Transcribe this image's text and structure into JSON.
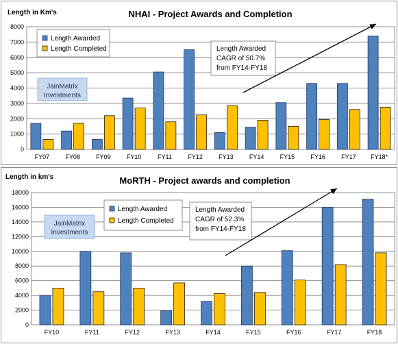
{
  "colors": {
    "awarded": "#4f81bd",
    "completed": "#ffc000",
    "awarded_border": "#1f3864",
    "completed_border": "#1f1f1f",
    "watermark_fill": "#c6d9f1",
    "grid": "#8c8c8c"
  },
  "chart_data": [
    {
      "type": "bar",
      "title": "NHAI - Project  Awards and Completion",
      "ylabel": "Length in Km's",
      "xlabel": "",
      "categories": [
        "FY07",
        "FY08",
        "FY09",
        "FY10",
        "FY11",
        "FY12",
        "FY13",
        "FY14",
        "FY15",
        "FY16",
        "FY17",
        "FY18*"
      ],
      "series": [
        {
          "name": "Length Awarded",
          "values": [
            1700,
            1200,
            650,
            3350,
            5050,
            6500,
            1100,
            1450,
            3050,
            4300,
            4300,
            7400
          ]
        },
        {
          "name": "Length Completed",
          "values": [
            650,
            1700,
            2200,
            2700,
            1800,
            2250,
            2850,
            1900,
            1500,
            1950,
            2600,
            2750
          ]
        }
      ],
      "ylim": [
        0,
        8000
      ],
      "yticks": [
        "0",
        "1000",
        "2000",
        "3000",
        "4000",
        "5000",
        "6000",
        "7000",
        "8000"
      ],
      "grid": true,
      "legend": "top-left",
      "annotation": [
        "Length Awarded",
        "CAGR of 50.7%",
        "from FY14-FY18"
      ],
      "watermark": [
        "JainMatrix",
        "Investments"
      ]
    },
    {
      "type": "bar",
      "title": "MoRTH - Project  awards and completion",
      "ylabel": "Length in km's",
      "xlabel": "",
      "categories": [
        "FY10",
        "FY11",
        "FY12",
        "FY13",
        "FY14",
        "FY15",
        "FY16",
        "FY17",
        "FY18"
      ],
      "series": [
        {
          "name": "Length Awarded",
          "values": [
            4000,
            10000,
            9800,
            1900,
            3200,
            8000,
            10100,
            16000,
            17100
          ]
        },
        {
          "name": "Length Completed",
          "values": [
            5000,
            4500,
            5000,
            5700,
            4250,
            4400,
            6100,
            8200,
            9800
          ]
        }
      ],
      "ylim": [
        0,
        18000
      ],
      "yticks": [
        "0",
        "2000",
        "4000",
        "6000",
        "8000",
        "10000",
        "12000",
        "14000",
        "16000",
        "18000"
      ],
      "grid": true,
      "legend": "top-left",
      "annotation": [
        "Length Awarded",
        "CAGR of 52.3%",
        "from FY14-FY18"
      ],
      "watermark": [
        "JainMatrix",
        "Investments"
      ]
    }
  ]
}
